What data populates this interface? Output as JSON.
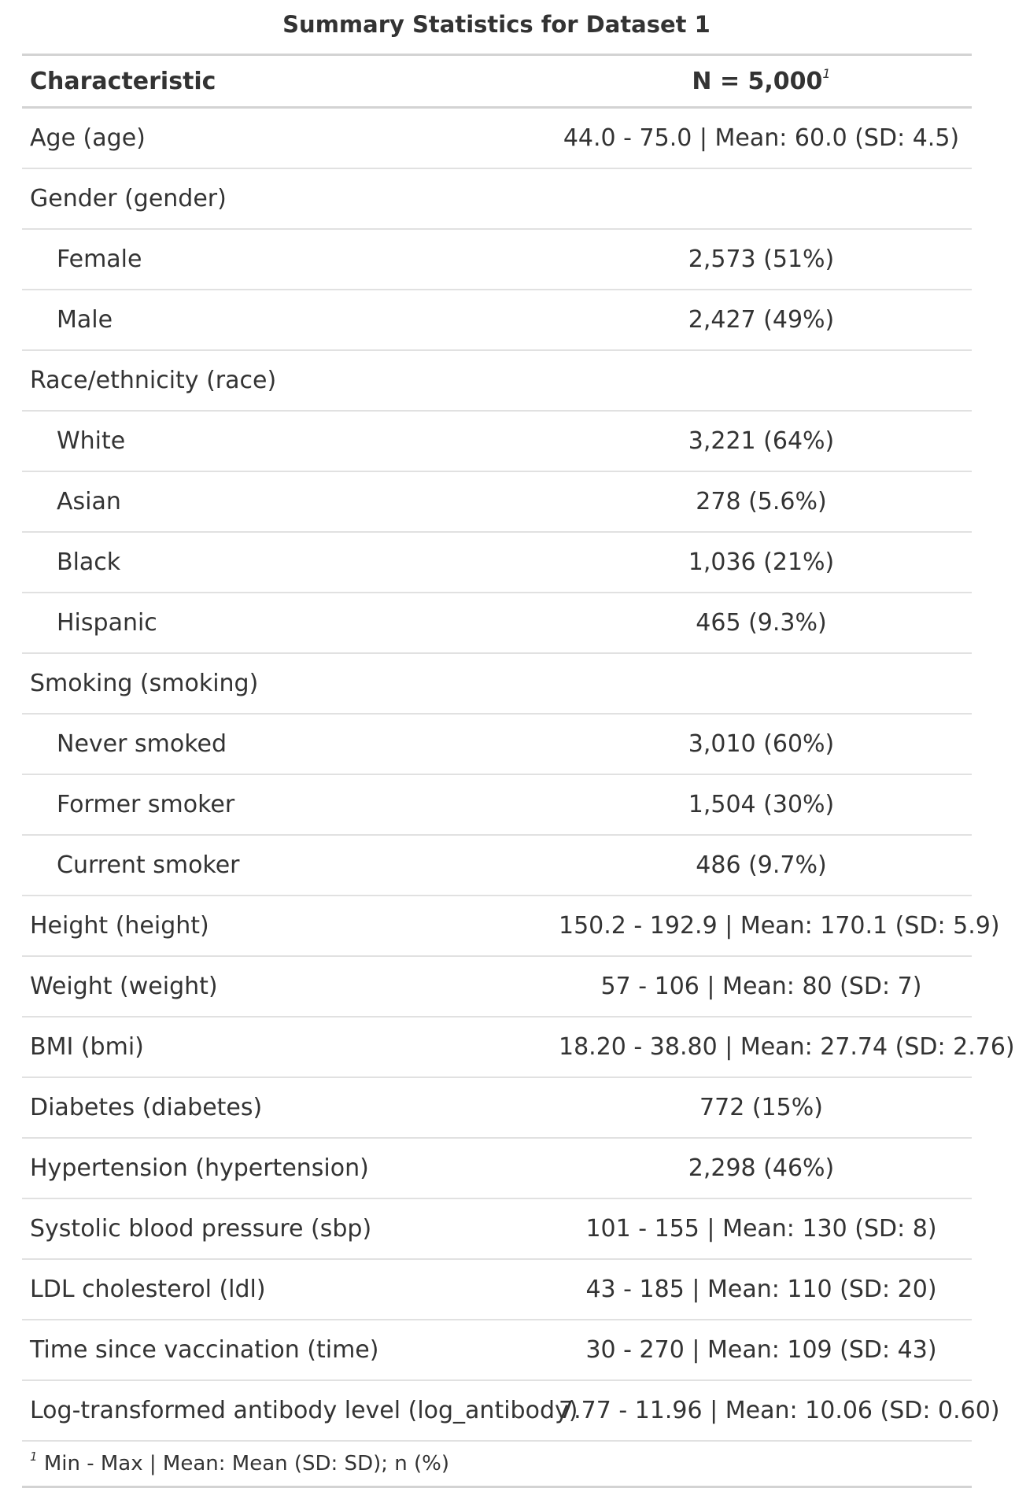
{
  "table": {
    "title": "Summary Statistics for Dataset 1",
    "header": {
      "characteristic": "Characteristic",
      "n": "N = 5,000",
      "n_footnote_mark": "1"
    },
    "rows": [
      {
        "label": "Age (age)",
        "value": "44.0 - 75.0 | Mean: 60.0 (SD: 4.5)",
        "level": 0
      },
      {
        "label": "Gender (gender)",
        "value": "",
        "level": 0
      },
      {
        "label": "Female",
        "value": "2,573 (51%)",
        "level": 1
      },
      {
        "label": "Male",
        "value": "2,427 (49%)",
        "level": 1
      },
      {
        "label": "Race/ethnicity (race)",
        "value": "",
        "level": 0
      },
      {
        "label": "White",
        "value": "3,221 (64%)",
        "level": 1
      },
      {
        "label": "Asian",
        "value": "278 (5.6%)",
        "level": 1
      },
      {
        "label": "Black",
        "value": "1,036 (21%)",
        "level": 1
      },
      {
        "label": "Hispanic",
        "value": "465 (9.3%)",
        "level": 1
      },
      {
        "label": "Smoking (smoking)",
        "value": "",
        "level": 0
      },
      {
        "label": "Never smoked",
        "value": "3,010 (60%)",
        "level": 1
      },
      {
        "label": "Former smoker",
        "value": "1,504 (30%)",
        "level": 1
      },
      {
        "label": "Current smoker",
        "value": "486 (9.7%)",
        "level": 1
      },
      {
        "label": "Height (height)",
        "value": "150.2 - 192.9 | Mean: 170.1 (SD: 5.9)",
        "level": 0
      },
      {
        "label": "Weight (weight)",
        "value": "57 - 106 | Mean: 80 (SD: 7)",
        "level": 0
      },
      {
        "label": "BMI (bmi)",
        "value": "18.20 - 38.80 | Mean: 27.74 (SD: 2.76)",
        "level": 0
      },
      {
        "label": "Diabetes (diabetes)",
        "value": "772 (15%)",
        "level": 0
      },
      {
        "label": "Hypertension (hypertension)",
        "value": "2,298 (46%)",
        "level": 0
      },
      {
        "label": "Systolic blood pressure (sbp)",
        "value": "101 - 155 | Mean: 130 (SD: 8)",
        "level": 0
      },
      {
        "label": "LDL cholesterol (ldl)",
        "value": "43 - 185 | Mean: 110 (SD: 20)",
        "level": 0
      },
      {
        "label": "Time since vaccination (time)",
        "value": "30 - 270 | Mean: 109 (SD: 43)",
        "level": 0
      },
      {
        "label": "Log-transformed antibody level (log_antibody)",
        "value": "7.77 - 11.96 | Mean: 10.06 (SD: 0.60)",
        "level": 0
      }
    ],
    "footnote": {
      "mark": "1",
      "text": "Min - Max | Mean: Mean (SD: SD); n (%)"
    }
  }
}
